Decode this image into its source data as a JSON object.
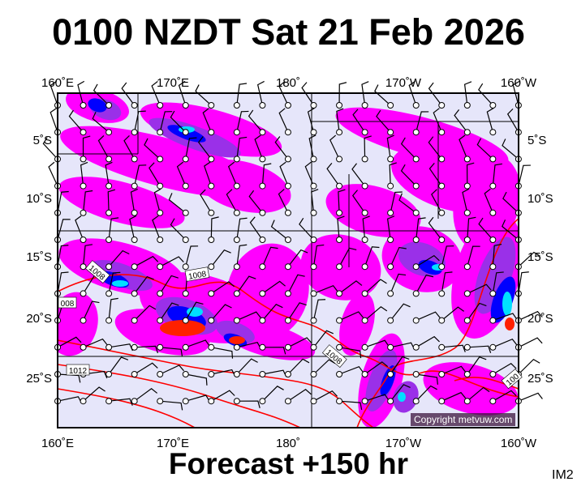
{
  "title": "0100 NZDT Sat 21 Feb 2026",
  "subtitle": "Forecast +150 hr",
  "image_code": "IM2",
  "copyright": "Copyright metvuw.com",
  "axes": {
    "lon_labels": [
      "160˚E",
      "170˚E",
      "180˚",
      "170˚W",
      "160˚W"
    ],
    "lat_labels": [
      "5˚S",
      "10˚S",
      "15˚S",
      "20˚S",
      "25˚S"
    ]
  },
  "isobar_labels": [
    "1008",
    "1008",
    "008",
    "1012",
    "1008",
    "100"
  ],
  "colors": {
    "background": "#e6e6fa",
    "rain_light": "#ff00ff",
    "rain_moderate": "#9a30e8",
    "rain_heavy": "#0000ff",
    "rain_very_heavy": "#00e0ff",
    "rain_extreme": "#00ff60",
    "rain_max": "#ff2000",
    "isobar": "#ff0000"
  }
}
